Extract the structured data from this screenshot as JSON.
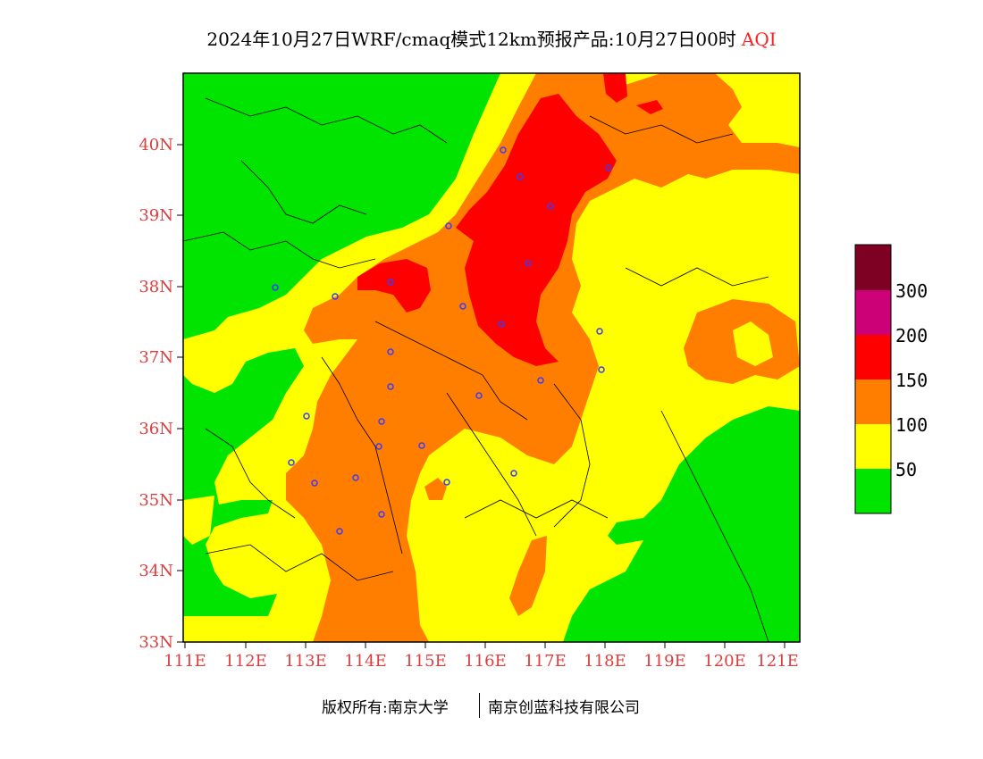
{
  "title": {
    "main": "2024年10月27日WRF/cmaq模式12km预报产品:10月27日00时",
    "variable": "AQI"
  },
  "map": {
    "lat_ticks": [
      "40N",
      "39N",
      "38N",
      "37N",
      "36N",
      "35N",
      "34N",
      "33N"
    ],
    "lon_ticks": [
      "111E",
      "112E",
      "113E",
      "114E",
      "115E",
      "116E",
      "117E",
      "118E",
      "119E",
      "120E",
      "121E"
    ]
  },
  "legend": {
    "labels": [
      "300",
      "200",
      "150",
      "100",
      "50"
    ],
    "colors": {
      "0-50": "#00e400",
      "50-100": "#ffff00",
      "100-150": "#ff7e00",
      "150-200": "#ff0000",
      "200-300": "#cc0077",
      "300+": "#7e0023"
    }
  },
  "footer": {
    "copyright": "版权所有:南京大学",
    "company": "南京创蓝科技有限公司"
  }
}
